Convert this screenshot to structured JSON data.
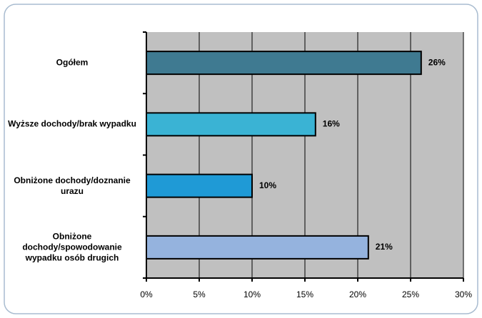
{
  "chart_data": {
    "type": "bar",
    "orientation": "horizontal",
    "categories": [
      "Ogółem",
      "Wyższe dochody/brak wypadku",
      "Obniżone dochody/doznanie urazu",
      "Obniżone dochody/spowodowanie wypadku osób drugich"
    ],
    "values": [
      26,
      16,
      10,
      21
    ],
    "value_labels": [
      "26%",
      "16%",
      "10%",
      "21%"
    ],
    "colors": [
      "#3f7a91",
      "#3ab3d4",
      "#1f9ad6",
      "#95b3de"
    ],
    "xlim": [
      0,
      30
    ],
    "xticks": [
      {
        "value": 0,
        "label": "0%"
      },
      {
        "value": 5,
        "label": "5%"
      },
      {
        "value": 10,
        "label": "10%"
      },
      {
        "value": 15,
        "label": "15%"
      },
      {
        "value": 20,
        "label": "20%"
      },
      {
        "value": 25,
        "label": "25%"
      },
      {
        "value": 30,
        "label": "30%"
      }
    ],
    "grid": true
  }
}
